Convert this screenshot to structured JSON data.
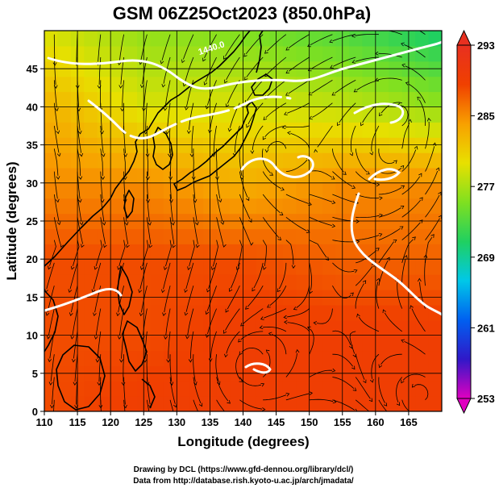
{
  "title": "GSM 06Z25Oct2023 (850.0hPa)",
  "xlabel": "Longitude (degrees)",
  "ylabel": "Latitude  (degrees)",
  "credit_line1": "Drawing by DCL (https://www.gfd-dennou.org/library/dcl/)",
  "credit_line2": "Data from http://database.rish.kyoto-u.ac.jp/arch/jmadata/",
  "contour_label": "1440.0",
  "chart_data": {
    "type": "heatmap",
    "title": "GSM 06Z25Oct2023 (850.0hPa)",
    "xlabel": "Longitude (degrees)",
    "ylabel": "Latitude  (degrees)",
    "xlim": [
      110,
      170
    ],
    "ylim": [
      0,
      50
    ],
    "xticks": [
      110,
      115,
      120,
      125,
      130,
      135,
      140,
      145,
      150,
      155,
      160,
      165
    ],
    "yticks": [
      0,
      5,
      10,
      15,
      20,
      25,
      30,
      35,
      40,
      45
    ],
    "grid": true,
    "colorbar": {
      "min": 253,
      "max": 293,
      "ticks": [
        253,
        261,
        269,
        277,
        285,
        293
      ],
      "colors": [
        "#e000c0",
        "#3018c8",
        "#0060f0",
        "#00c8e8",
        "#20d060",
        "#80e020",
        "#e8e000",
        "#f8a000",
        "#f04000",
        "#e83020"
      ]
    },
    "temperature_field_K": {
      "lat": [
        0,
        10,
        20,
        30,
        40,
        50
      ],
      "lon": [
        110,
        125,
        140,
        155,
        170
      ],
      "values": [
        [
          288,
          289,
          289,
          289,
          289
        ],
        [
          288,
          288,
          289,
          289,
          289
        ],
        [
          288,
          288,
          288,
          287,
          287
        ],
        [
          285,
          285,
          283,
          285,
          285
        ],
        [
          283,
          279,
          279,
          278,
          276
        ],
        [
          279,
          276,
          275,
          273,
          270
        ]
      ]
    },
    "cyclonic_centers": [
      {
        "lon": 145,
        "lat": 34
      },
      {
        "lon": 162,
        "lat": 34
      },
      {
        "lon": 164,
        "lat": 39
      },
      {
        "lon": 141,
        "lat": 6
      },
      {
        "lon": 167,
        "lat": 2
      }
    ]
  }
}
